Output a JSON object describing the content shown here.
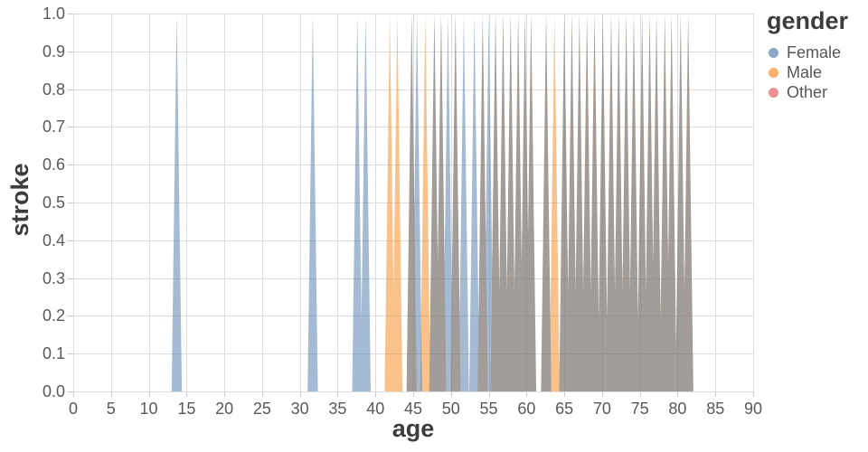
{
  "x_axis": {
    "label": "age",
    "tick_values": [
      0,
      5,
      10,
      15,
      20,
      25,
      30,
      35,
      40,
      45,
      50,
      55,
      60,
      65,
      70,
      75,
      80,
      85,
      90
    ],
    "tick_labels": [
      "0",
      "5",
      "10",
      "15",
      "20",
      "25",
      "30",
      "35",
      "40",
      "45",
      "50",
      "55",
      "60",
      "65",
      "70",
      "75",
      "80",
      "85",
      "90"
    ]
  },
  "y_axis": {
    "label": "stroke",
    "tick_values": [
      0,
      0.1,
      0.2,
      0.3,
      0.4,
      0.5,
      0.6,
      0.7,
      0.8,
      0.9,
      1.0
    ],
    "tick_labels": [
      "0.0",
      "0.1",
      "0.2",
      "0.3",
      "0.4",
      "0.5",
      "0.6",
      "0.7",
      "0.8",
      "0.9",
      "1.0"
    ]
  },
  "legend": {
    "title": "gender",
    "items": [
      {
        "label": "Female",
        "color": "#4c78a8"
      },
      {
        "label": "Male",
        "color": "#f58518"
      },
      {
        "label": "Other",
        "color": "#e45756"
      }
    ]
  },
  "chart_data": {
    "type": "area",
    "title": "",
    "xlabel": "age",
    "ylabel": "stroke",
    "xlim": [
      0,
      90
    ],
    "ylim": [
      0,
      1
    ],
    "grid": true,
    "legend_position": "top-right",
    "fill_opacity": 0.5,
    "spike_half_width": 0.68,
    "spike_peak_y": 1.0,
    "note": "Each spike rises to stroke=1 at an age with a stroke event and returns to 0; overlapping Female+Male spikes render gray.",
    "series": [
      {
        "name": "Male",
        "color": "#f58518",
        "stroke_ages": [
          41.9,
          42.9,
          44.8,
          46.6,
          47.8,
          48.7,
          50.6,
          54.2,
          55.9,
          56.9,
          57.9,
          58.9,
          59.8,
          60.6,
          62.6,
          63.7,
          65.0,
          66.0,
          67.0,
          68.0,
          69.0,
          70.1,
          71.2,
          72.2,
          73.2,
          74.2,
          75.3,
          76.3,
          77.2,
          78.3,
          79.2,
          80.4,
          81.4
        ]
      },
      {
        "name": "Female",
        "color": "#4c78a8",
        "stroke_ages": [
          13.7,
          31.7,
          37.6,
          38.7,
          44.8,
          45.5,
          47.8,
          48.7,
          49.6,
          50.6,
          51.7,
          53.1,
          54.2,
          55.0,
          55.9,
          56.9,
          57.9,
          58.9,
          59.8,
          60.6,
          62.6,
          65.0,
          66.0,
          67.0,
          68.0,
          69.0,
          70.1,
          71.2,
          72.2,
          73.2,
          74.2,
          75.3,
          76.3,
          77.2,
          78.3,
          79.2,
          80.4,
          81.4
        ]
      },
      {
        "name": "Other",
        "color": "#e45756",
        "stroke_ages": []
      }
    ],
    "style": {
      "grid_color": "#dddddd",
      "tick_color": "#c9c9c9",
      "tick_label_color": "#595959",
      "axis_title_color": "#3d3d3d"
    }
  }
}
